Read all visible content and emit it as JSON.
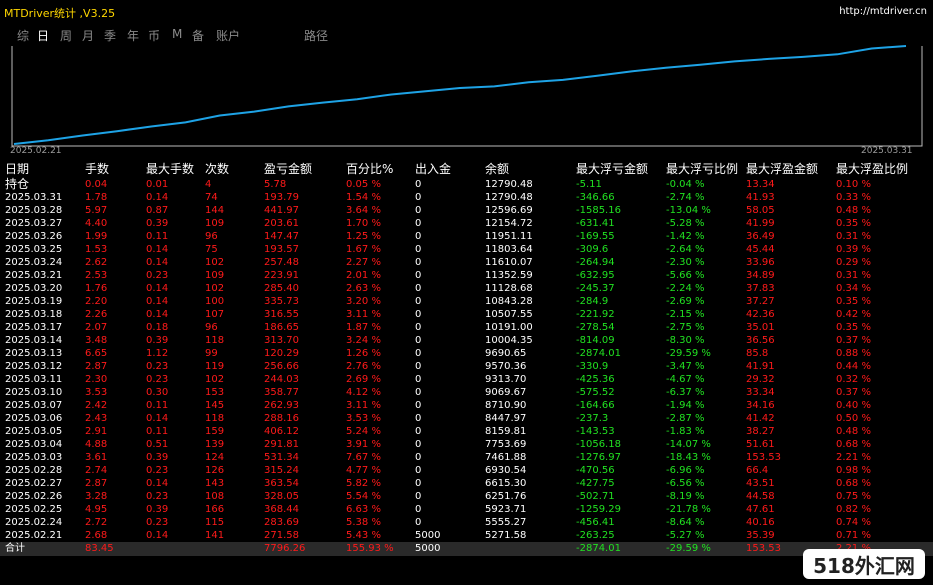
{
  "app": {
    "title": "MTDriver统计 ,V3.25",
    "url": "http://mtdriver.cn"
  },
  "tabs": [
    {
      "label": "综",
      "active": false
    },
    {
      "label": "日",
      "active": true
    },
    {
      "label": "周",
      "active": false
    },
    {
      "label": "月",
      "active": false
    },
    {
      "label": "季",
      "active": false
    },
    {
      "label": "年",
      "active": false
    },
    {
      "label": "币",
      "active": false
    },
    {
      "label": "M",
      "active": false
    },
    {
      "label": "备",
      "active": false
    },
    {
      "label": "账户",
      "active": false
    },
    {
      "label": "路径",
      "active": false
    }
  ],
  "chart_data": {
    "type": "line",
    "x": [
      "2025.02.21",
      "2025.02.24",
      "2025.02.25",
      "2025.02.26",
      "2025.02.27",
      "2025.02.28",
      "2025.03.03",
      "2025.03.04",
      "2025.03.05",
      "2025.03.06",
      "2025.03.07",
      "2025.03.10",
      "2025.03.11",
      "2025.03.12",
      "2025.03.13",
      "2025.03.14",
      "2025.03.17",
      "2025.03.18",
      "2025.03.19",
      "2025.03.20",
      "2025.03.21",
      "2025.03.24",
      "2025.03.25",
      "2025.03.26",
      "2025.03.27",
      "2025.03.28",
      "2025.03.31"
    ],
    "y": [
      5271.58,
      5555.27,
      5923.71,
      6251.76,
      6615.3,
      6930.54,
      7461.88,
      7753.69,
      8159.81,
      8447.97,
      8710.9,
      9069.67,
      9313.7,
      9570.36,
      9690.65,
      10004.35,
      10191.0,
      10507.55,
      10843.28,
      11128.68,
      11352.59,
      11610.07,
      11803.64,
      11951.11,
      12154.72,
      12596.69,
      12790.48
    ],
    "x_start_label": "2025.02.21",
    "x_end_label": "2025.03.31",
    "line_color": "#1ea3e6",
    "grid": false
  },
  "table": {
    "headers": [
      "日期",
      "手数",
      "最大手数",
      "次数",
      "盈亏金额",
      "百分比%",
      "出入金",
      "余额",
      "最大浮亏金额",
      "最大浮亏比例",
      "最大浮盈金额",
      "最大浮盈比例"
    ],
    "rows": [
      [
        "持仓",
        "0.04",
        "0.01",
        "4",
        "5.78",
        "0.05 %",
        "0",
        "12790.48",
        "-5.11",
        "-0.04 %",
        "13.34",
        "0.10 %"
      ],
      [
        "2025.03.31",
        "1.78",
        "0.14",
        "74",
        "193.79",
        "1.54 %",
        "0",
        "12790.48",
        "-346.66",
        "-2.74 %",
        "41.93",
        "0.33 %"
      ],
      [
        "2025.03.28",
        "5.97",
        "0.87",
        "144",
        "441.97",
        "3.64 %",
        "0",
        "12596.69",
        "-1585.16",
        "-13.04 %",
        "58.05",
        "0.48 %"
      ],
      [
        "2025.03.27",
        "4.40",
        "0.39",
        "109",
        "203.61",
        "1.70 %",
        "0",
        "12154.72",
        "-631.41",
        "-5.28 %",
        "41.99",
        "0.35 %"
      ],
      [
        "2025.03.26",
        "1.99",
        "0.11",
        "96",
        "147.47",
        "1.25 %",
        "0",
        "11951.11",
        "-169.55",
        "-1.42 %",
        "36.49",
        "0.31 %"
      ],
      [
        "2025.03.25",
        "1.53",
        "0.14",
        "75",
        "193.57",
        "1.67 %",
        "0",
        "11803.64",
        "-309.6",
        "-2.64 %",
        "45.44",
        "0.39 %"
      ],
      [
        "2025.03.24",
        "2.62",
        "0.14",
        "102",
        "257.48",
        "2.27 %",
        "0",
        "11610.07",
        "-264.94",
        "-2.30 %",
        "33.96",
        "0.29 %"
      ],
      [
        "2025.03.21",
        "2.53",
        "0.23",
        "109",
        "223.91",
        "2.01 %",
        "0",
        "11352.59",
        "-632.95",
        "-5.66 %",
        "34.89",
        "0.31 %"
      ],
      [
        "2025.03.20",
        "1.76",
        "0.14",
        "102",
        "285.40",
        "2.63 %",
        "0",
        "11128.68",
        "-245.37",
        "-2.24 %",
        "37.83",
        "0.34 %"
      ],
      [
        "2025.03.19",
        "2.20",
        "0.14",
        "100",
        "335.73",
        "3.20 %",
        "0",
        "10843.28",
        "-284.9",
        "-2.69 %",
        "37.27",
        "0.35 %"
      ],
      [
        "2025.03.18",
        "2.26",
        "0.14",
        "107",
        "316.55",
        "3.11 %",
        "0",
        "10507.55",
        "-221.92",
        "-2.15 %",
        "42.36",
        "0.42 %"
      ],
      [
        "2025.03.17",
        "2.07",
        "0.18",
        "96",
        "186.65",
        "1.87 %",
        "0",
        "10191.00",
        "-278.54",
        "-2.75 %",
        "35.01",
        "0.35 %"
      ],
      [
        "2025.03.14",
        "3.48",
        "0.39",
        "118",
        "313.70",
        "3.24 %",
        "0",
        "10004.35",
        "-814.09",
        "-8.30 %",
        "36.56",
        "0.37 %"
      ],
      [
        "2025.03.13",
        "6.65",
        "1.12",
        "99",
        "120.29",
        "1.26 %",
        "0",
        "9690.65",
        "-2874.01",
        "-29.59 %",
        "85.8",
        "0.88 %"
      ],
      [
        "2025.03.12",
        "2.87",
        "0.23",
        "119",
        "256.66",
        "2.76 %",
        "0",
        "9570.36",
        "-330.9",
        "-3.47 %",
        "41.91",
        "0.44 %"
      ],
      [
        "2025.03.11",
        "2.30",
        "0.23",
        "102",
        "244.03",
        "2.69 %",
        "0",
        "9313.70",
        "-425.36",
        "-4.67 %",
        "29.32",
        "0.32 %"
      ],
      [
        "2025.03.10",
        "3.53",
        "0.30",
        "153",
        "358.77",
        "4.12 %",
        "0",
        "9069.67",
        "-575.52",
        "-6.37 %",
        "33.34",
        "0.37 %"
      ],
      [
        "2025.03.07",
        "2.42",
        "0.11",
        "145",
        "262.93",
        "3.11 %",
        "0",
        "8710.90",
        "-164.66",
        "-1.94 %",
        "34.16",
        "0.40 %"
      ],
      [
        "2025.03.06",
        "2.43",
        "0.14",
        "118",
        "288.16",
        "3.53 %",
        "0",
        "8447.97",
        "-237.3",
        "-2.87 %",
        "41.42",
        "0.50 %"
      ],
      [
        "2025.03.05",
        "2.91",
        "0.11",
        "159",
        "406.12",
        "5.24 %",
        "0",
        "8159.81",
        "-143.53",
        "-1.83 %",
        "38.27",
        "0.48 %"
      ],
      [
        "2025.03.04",
        "4.88",
        "0.51",
        "139",
        "291.81",
        "3.91 %",
        "0",
        "7753.69",
        "-1056.18",
        "-14.07 %",
        "51.61",
        "0.68 %"
      ],
      [
        "2025.03.03",
        "3.61",
        "0.39",
        "124",
        "531.34",
        "7.67 %",
        "0",
        "7461.88",
        "-1276.97",
        "-18.43 %",
        "153.53",
        "2.21 %"
      ],
      [
        "2025.02.28",
        "2.74",
        "0.23",
        "126",
        "315.24",
        "4.77 %",
        "0",
        "6930.54",
        "-470.56",
        "-6.96 %",
        "66.4",
        "0.98 %"
      ],
      [
        "2025.02.27",
        "2.87",
        "0.14",
        "143",
        "363.54",
        "5.82 %",
        "0",
        "6615.30",
        "-427.75",
        "-6.56 %",
        "43.51",
        "0.68 %"
      ],
      [
        "2025.02.26",
        "3.28",
        "0.23",
        "108",
        "328.05",
        "5.54 %",
        "0",
        "6251.76",
        "-502.71",
        "-8.19 %",
        "44.58",
        "0.75 %"
      ],
      [
        "2025.02.25",
        "4.95",
        "0.39",
        "166",
        "368.44",
        "6.63 %",
        "0",
        "5923.71",
        "-1259.29",
        "-21.78 %",
        "47.61",
        "0.82 %"
      ],
      [
        "2025.02.24",
        "2.72",
        "0.23",
        "115",
        "283.69",
        "5.38 %",
        "0",
        "5555.27",
        "-456.41",
        "-8.64 %",
        "40.16",
        "0.74 %"
      ],
      [
        "2025.02.21",
        "2.68",
        "0.14",
        "141",
        "271.58",
        "5.43 %",
        "5000",
        "5271.58",
        "-263.25",
        "-5.27 %",
        "35.39",
        "0.71 %"
      ]
    ],
    "total": [
      "合计",
      "83.45",
      "",
      "",
      "7796.26",
      "155.93 %",
      "5000",
      "",
      "-2874.01",
      "-29.59 %",
      "153.53",
      "2.21 %"
    ]
  },
  "colors": {
    "positive": "#ff1a1a",
    "negative": "#21e121",
    "neutral": "#ffffff",
    "line": "#1ea3e6",
    "title": "#ffd700"
  },
  "watermark": {
    "text": "518外汇网"
  }
}
